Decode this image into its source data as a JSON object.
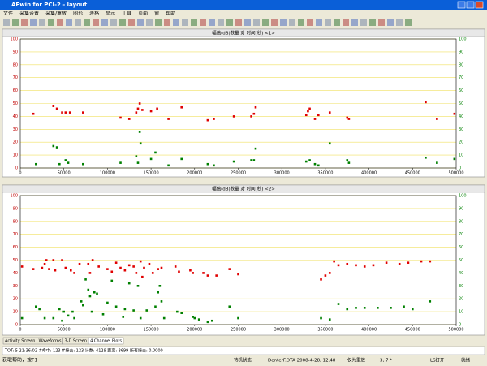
{
  "window": {
    "title": "AEwin for PCI-2 - layout",
    "menu": [
      "文件",
      "采集设置",
      "采集/重放",
      "图形",
      "表格",
      "显示",
      "工具",
      "页面",
      "窗",
      "帮助"
    ]
  },
  "chart_data": [
    {
      "type": "scatter",
      "title": "幅值(dB)数量 对 时间(秒) <1>",
      "xlim": [
        0,
        500000
      ],
      "xticks": [
        0,
        50000,
        100000,
        150000,
        200000,
        250000,
        300000,
        350000,
        400000,
        450000,
        500000
      ],
      "ylim": [
        0,
        100
      ],
      "yticks": [
        0,
        10,
        20,
        30,
        40,
        50,
        60,
        70,
        80,
        90,
        100
      ],
      "grid": true,
      "series": [
        {
          "color": "#e00000",
          "x": [
            15000,
            38000,
            42000,
            48000,
            52000,
            57000,
            72000,
            115000,
            125000,
            133000,
            135000,
            137000,
            140000,
            150000,
            157000,
            170000,
            185000,
            215000,
            222000,
            245000,
            265000,
            268000,
            270000,
            328000,
            330000,
            332000,
            338000,
            342000,
            355000,
            375000,
            377000,
            465000,
            478000,
            498000
          ],
          "values": [
            42,
            48,
            46,
            43,
            43,
            43,
            43,
            39,
            38,
            43,
            46,
            50,
            45,
            44,
            46,
            38,
            47,
            37,
            38,
            40,
            40,
            42,
            47,
            41,
            44,
            46,
            38,
            41,
            43,
            39,
            38,
            51,
            38,
            42
          ]
        },
        {
          "color": "#008000",
          "x": [
            18000,
            38000,
            42000,
            45000,
            52000,
            55000,
            72000,
            115000,
            133000,
            135000,
            137000,
            138000,
            150000,
            155000,
            170000,
            185000,
            215000,
            222000,
            245000,
            265000,
            268000,
            270000,
            328000,
            332000,
            338000,
            342000,
            355000,
            375000,
            377000,
            465000,
            478000,
            498000
          ],
          "values": [
            3,
            17,
            16,
            3,
            6,
            4,
            3,
            4,
            9,
            4,
            28,
            19,
            7,
            12,
            2,
            7,
            3,
            2,
            5,
            6,
            6,
            15,
            5,
            6,
            3,
            2,
            19,
            6,
            4,
            8,
            4,
            7
          ]
        }
      ]
    },
    {
      "type": "scatter",
      "title": "幅值(dB)数量 对 时间(秒) <2>",
      "xlim": [
        0,
        500000
      ],
      "xticks": [
        0,
        50000,
        100000,
        150000,
        200000,
        250000,
        300000,
        350000,
        400000,
        450000,
        500000
      ],
      "ylim": [
        0,
        100
      ],
      "yticks": [
        0,
        10,
        20,
        30,
        40,
        50,
        60,
        70,
        80,
        90,
        100
      ],
      "grid": true,
      "series": [
        {
          "color": "#e00000",
          "x": [
            2000,
            15000,
            25000,
            28000,
            30000,
            33000,
            38000,
            40000,
            48000,
            52000,
            58000,
            62000,
            68000,
            78000,
            80000,
            83000,
            90000,
            100000,
            105000,
            110000,
            115000,
            120000,
            125000,
            130000,
            133000,
            138000,
            140000,
            142000,
            148000,
            152000,
            158000,
            162000,
            178000,
            182000,
            195000,
            198000,
            210000,
            215000,
            225000,
            240000,
            250000,
            345000,
            350000,
            355000,
            360000,
            365000,
            375000,
            385000,
            395000,
            405000,
            420000,
            435000,
            445000,
            460000,
            470000
          ],
          "values": [
            45,
            43,
            44,
            47,
            50,
            43,
            50,
            42,
            50,
            44,
            42,
            40,
            47,
            47,
            40,
            50,
            45,
            43,
            41,
            48,
            44,
            42,
            46,
            45,
            40,
            49,
            37,
            44,
            47,
            40,
            43,
            44,
            45,
            41,
            42,
            40,
            40,
            38,
            38,
            43,
            39,
            35,
            38,
            40,
            49,
            46,
            47,
            46,
            45,
            46,
            48,
            47,
            48,
            49,
            49
          ]
        },
        {
          "color": "#008000",
          "x": [
            2000,
            18000,
            22000,
            28000,
            38000,
            45000,
            48000,
            50000,
            55000,
            60000,
            62000,
            70000,
            72000,
            75000,
            78000,
            80000,
            82000,
            85000,
            88000,
            95000,
            100000,
            105000,
            110000,
            118000,
            120000,
            125000,
            130000,
            135000,
            138000,
            145000,
            155000,
            158000,
            160000,
            162000,
            165000,
            180000,
            185000,
            198000,
            200000,
            205000,
            215000,
            220000,
            240000,
            250000,
            345000,
            355000,
            365000,
            375000,
            385000,
            395000,
            410000,
            425000,
            440000,
            450000,
            470000
          ],
          "values": [
            5,
            14,
            12,
            5,
            5,
            12,
            3,
            10,
            7,
            10,
            5,
            18,
            15,
            35,
            27,
            22,
            10,
            25,
            24,
            8,
            17,
            34,
            14,
            6,
            12,
            32,
            11,
            30,
            5,
            11,
            14,
            25,
            30,
            18,
            5,
            10,
            9,
            6,
            5,
            4,
            2,
            3,
            14,
            5,
            5,
            4,
            16,
            12,
            13,
            13,
            13,
            13,
            14,
            12,
            18
          ]
        }
      ]
    }
  ],
  "tabs": [
    "Activity Screen",
    "Waveforms",
    "3-D Screen",
    "4 Channel Plots"
  ],
  "status": {
    "line": "TOT:   5 21:36:02   #命中: 123   #撞击: 123   计数: 4129   距离: 3699   所有撞击: 0.0000",
    "help": "获取帮助，按F1",
    "state": "待机状态",
    "file": "DenterF.DTA  2008-4-28, 12:48",
    "mode": "仅为重放",
    "pos": "3, 7 *",
    "ls": "LS打开",
    "ready": "就绪"
  }
}
